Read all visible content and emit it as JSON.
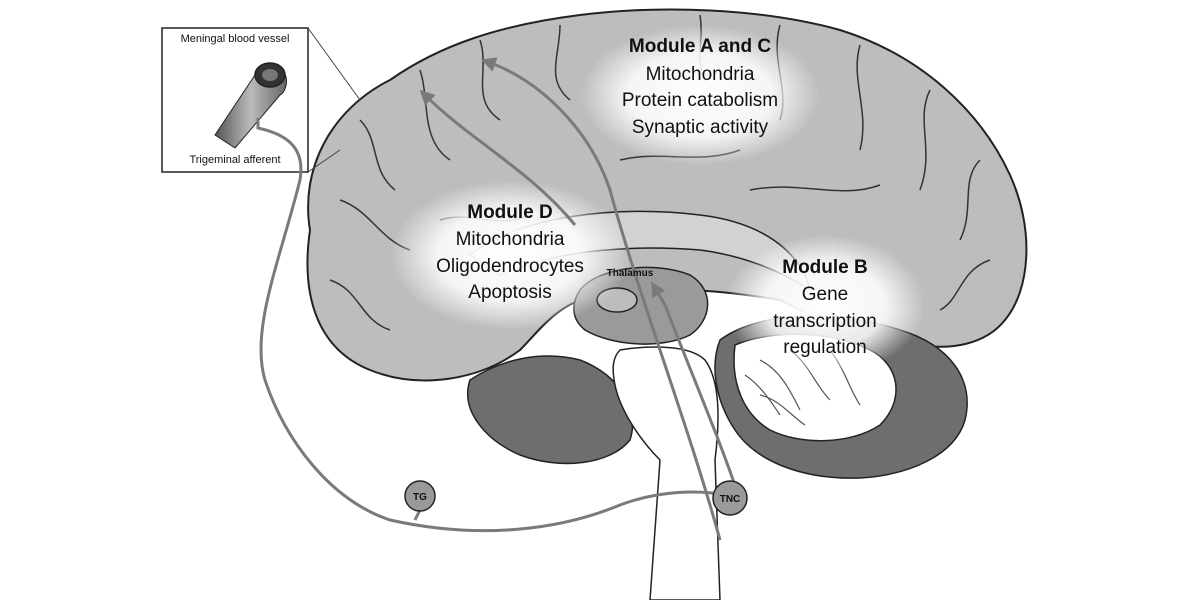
{
  "inset": {
    "vessel_label": "Meningal blood vessel",
    "afferent_label": "Trigeminal afferent"
  },
  "modules": [
    {
      "title": "Module A and C",
      "lines": [
        "Mitochondria",
        "Protein catabolism",
        "Synaptic activity"
      ]
    },
    {
      "title": "Module D",
      "lines": [
        "Mitochondria",
        "Oligodendrocytes",
        "Apoptosis"
      ]
    },
    {
      "title": "Module B",
      "lines": [
        "Gene",
        "transcription",
        "regulation"
      ]
    }
  ],
  "structures": {
    "thalamus": "Thalamus",
    "tg": "TG",
    "tnc": "TNC"
  },
  "colors": {
    "cortex": "#bdbdbd",
    "cortex_light": "#d2d2d2",
    "dark": "#6e6e6e",
    "mid": "#9a9a9a",
    "glow": "#ffffff",
    "arrow": "#7a7a7a",
    "outline": "#222222"
  }
}
